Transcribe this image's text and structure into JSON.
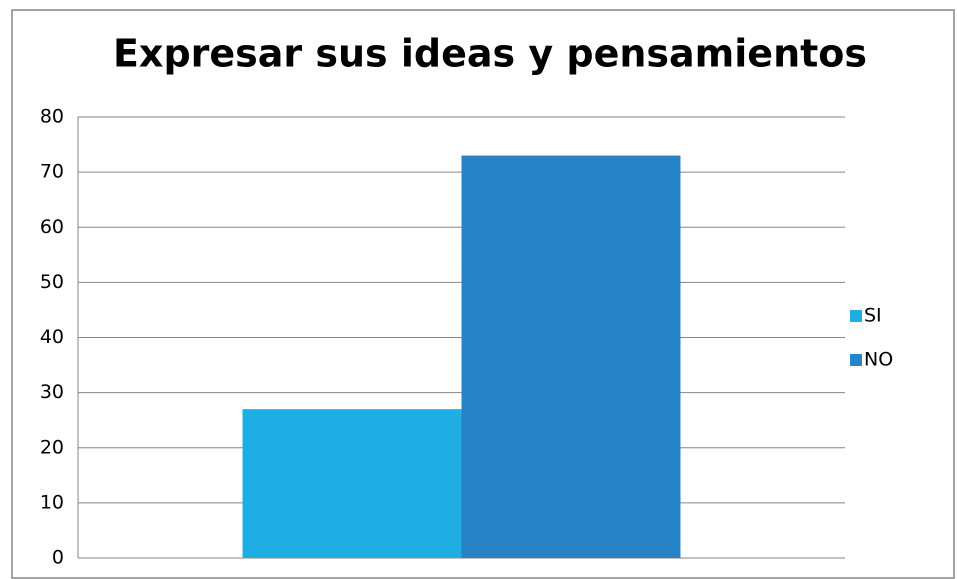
{
  "chart_data": {
    "type": "bar",
    "title": "Expresar sus ideas y pensamientos",
    "categories": [
      null
    ],
    "series": [
      {
        "name": "SI",
        "color": "#1fade4",
        "values": [
          27
        ]
      },
      {
        "name": "NO",
        "color": "#2683c6",
        "values": [
          73
        ]
      }
    ],
    "ylim": [
      0,
      80
    ],
    "yticks": [
      0,
      10,
      20,
      30,
      40,
      50,
      60,
      70,
      80
    ],
    "grid": true,
    "legend": "right"
  }
}
